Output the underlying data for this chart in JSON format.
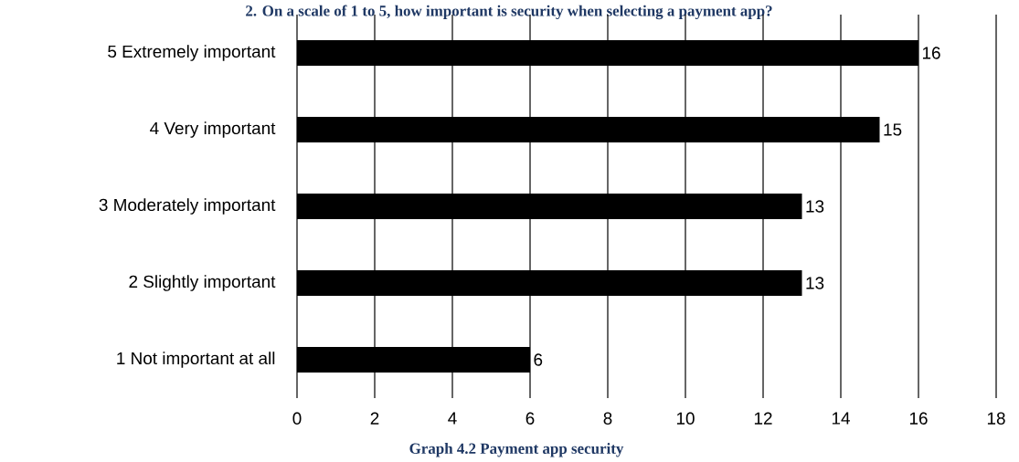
{
  "chart_data": {
    "type": "bar",
    "orientation": "horizontal",
    "title": "2. On a scale of 1 to 5, how important is security when selecting a payment app?",
    "categories": [
      "5  Extremely important",
      "4  Very important",
      "3  Moderately important",
      "2  Slightly important",
      "1  Not important at all"
    ],
    "values": [
      16,
      15,
      13,
      13,
      6
    ],
    "color": "#000000",
    "data_labels": true,
    "xlim": [
      0,
      18
    ],
    "xticks": [
      0,
      2,
      4,
      6,
      8,
      10,
      12,
      14,
      16,
      18
    ],
    "grid": "x",
    "annotations": [
      "Graph 4.2 Payment app security"
    ]
  }
}
